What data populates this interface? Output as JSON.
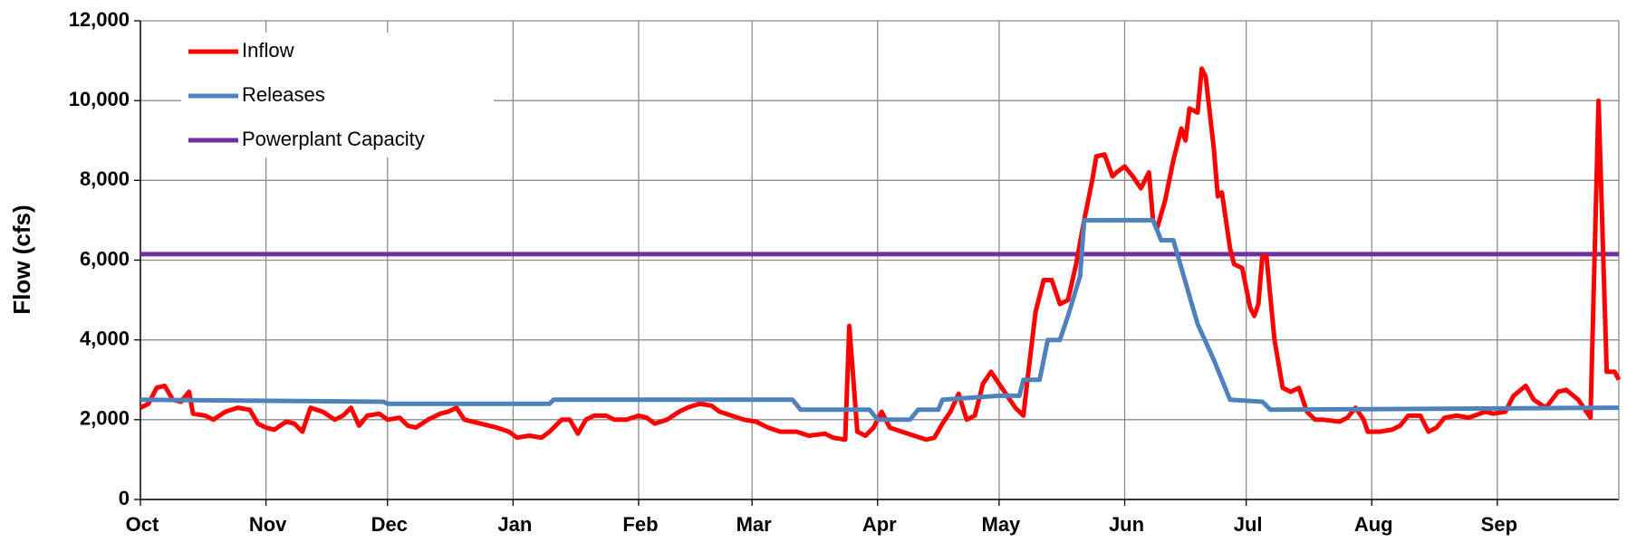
{
  "chart_data": {
    "type": "line",
    "ylabel": "Flow (cfs)",
    "xlim": [
      0,
      365
    ],
    "xticks": [
      {
        "value": 0,
        "label": "Oct"
      },
      {
        "value": 31,
        "label": "Nov"
      },
      {
        "value": 61,
        "label": "Dec"
      },
      {
        "value": 92,
        "label": "Jan"
      },
      {
        "value": 123,
        "label": "Feb"
      },
      {
        "value": 151,
        "label": "Mar"
      },
      {
        "value": 182,
        "label": "Apr"
      },
      {
        "value": 212,
        "label": "May"
      },
      {
        "value": 243,
        "label": "Jun"
      },
      {
        "value": 273,
        "label": "Jul"
      },
      {
        "value": 304,
        "label": "Aug"
      },
      {
        "value": 335,
        "label": "Sep"
      }
    ],
    "ylim": [
      0,
      12000
    ],
    "yticks": [
      0,
      {
        "value": 2000,
        "label": "2,000"
      },
      {
        "value": 4000,
        "label": "4,000"
      },
      {
        "value": 6000,
        "label": "6,000"
      },
      {
        "value": 8000,
        "label": "8,000"
      },
      {
        "value": 10000,
        "label": "10,000"
      },
      {
        "value": 12000,
        "label": "12,000"
      }
    ],
    "grid": true,
    "legend": "upper left",
    "series": [
      {
        "name": "Inflow",
        "color": "#ff0000",
        "x": [
          0,
          2,
          4,
          6,
          8,
          10,
          12,
          13,
          16,
          18,
          21,
          24,
          27,
          29,
          31,
          33,
          36,
          38,
          40,
          42,
          45,
          48,
          50,
          52,
          54,
          56,
          59,
          61,
          64,
          66,
          68,
          71,
          74,
          76,
          78,
          80,
          84,
          88,
          91,
          93,
          96,
          99,
          101,
          104,
          106,
          108,
          110,
          112,
          115,
          117,
          120,
          123,
          125,
          127,
          130,
          133,
          135,
          138,
          141,
          143,
          146,
          149,
          152,
          155,
          158,
          162,
          165,
          169,
          171,
          174,
          175,
          177,
          179,
          181,
          183,
          185,
          188,
          191,
          194,
          196,
          198,
          200,
          202,
          204,
          206,
          208,
          210,
          212,
          214,
          216,
          218,
          219,
          221,
          223,
          225,
          227,
          229,
          231,
          233,
          235,
          236,
          238,
          240,
          241,
          243,
          245,
          247,
          249,
          250,
          251,
          253,
          255,
          257,
          258,
          259,
          261,
          262,
          263,
          265,
          266,
          267,
          269,
          270,
          272,
          274,
          275,
          276,
          277,
          278,
          280,
          282,
          284,
          286,
          288,
          290,
          292,
          296,
          298,
          300,
          302,
          303,
          306,
          309,
          311,
          313,
          316,
          318,
          320,
          322,
          325,
          328,
          332,
          334,
          337,
          339,
          342,
          344,
          347,
          350,
          352,
          355,
          358,
          360,
          362,
          364,
          365
        ],
        "values": [
          2300,
          2400,
          2800,
          2850,
          2500,
          2450,
          2700,
          2150,
          2100,
          2000,
          2200,
          2300,
          2250,
          1900,
          1800,
          1750,
          1950,
          1900,
          1700,
          2300,
          2200,
          2000,
          2100,
          2300,
          1850,
          2100,
          2150,
          2000,
          2050,
          1850,
          1800,
          2000,
          2150,
          2200,
          2300,
          2000,
          1900,
          1800,
          1700,
          1550,
          1600,
          1550,
          1700,
          2000,
          2000,
          1650,
          2000,
          2100,
          2100,
          2000,
          2000,
          2100,
          2050,
          1900,
          2000,
          2200,
          2300,
          2400,
          2350,
          2200,
          2100,
          2000,
          1950,
          1800,
          1700,
          1700,
          1600,
          1650,
          1550,
          1500,
          4350,
          1700,
          1600,
          1800,
          2200,
          1800,
          1700,
          1600,
          1500,
          1550,
          1900,
          2200,
          2650,
          2000,
          2100,
          2900,
          3200,
          2900,
          2600,
          2300,
          2100,
          3000,
          4700,
          5500,
          5500,
          4900,
          5000,
          5900,
          7000,
          8000,
          8600,
          8650,
          8100,
          8200,
          8350,
          8100,
          7800,
          8200,
          7000,
          6800,
          7500,
          8500,
          9300,
          9000,
          9800,
          9700,
          10800,
          10600,
          8800,
          7600,
          7700,
          6300,
          5900,
          5800,
          4800,
          4600,
          4900,
          6100,
          6100,
          4000,
          2800,
          2700,
          2800,
          2200,
          2000,
          2000,
          1950,
          2050,
          2300,
          2000,
          1700,
          1700,
          1750,
          1850,
          2100,
          2100,
          1700,
          1800,
          2050,
          2100,
          2050,
          2200,
          2150,
          2200,
          2600,
          2850,
          2500,
          2300,
          2700,
          2750,
          2500,
          2050,
          10000,
          3200,
          3200,
          3000
        ]
      },
      {
        "name": "Releases",
        "color": "#4f81bd",
        "x": [
          0,
          60,
          61,
          101,
          102,
          161,
          163,
          180,
          182,
          190,
          192,
          197,
          198,
          212,
          217,
          218,
          222,
          224,
          227,
          229,
          232,
          233,
          250,
          252,
          255,
          261,
          265,
          269,
          277,
          279,
          365
        ],
        "values": [
          2500,
          2450,
          2400,
          2400,
          2500,
          2500,
          2250,
          2250,
          2000,
          2000,
          2250,
          2250,
          2500,
          2600,
          2600,
          3000,
          3000,
          4000,
          4000,
          4600,
          5600,
          7000,
          7000,
          6500,
          6500,
          4400,
          3500,
          2500,
          2450,
          2250,
          2300
        ]
      },
      {
        "name": "Powerplant Capacity",
        "color": "#7030a0",
        "x": [
          0,
          365
        ],
        "values": [
          6150,
          6150
        ]
      }
    ]
  }
}
